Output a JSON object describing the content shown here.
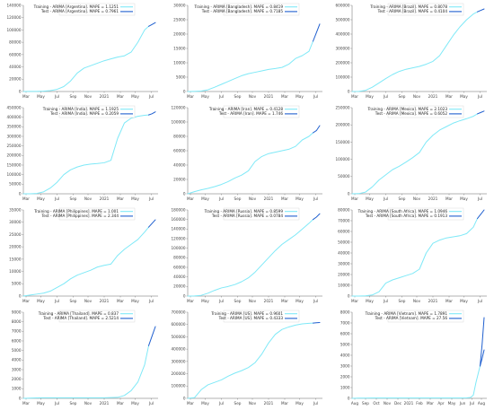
{
  "colors": {
    "training": "#7fe9f7",
    "test": "#1f5fcf"
  },
  "chart_data": [
    {
      "type": "line",
      "title": "",
      "x_tick_labels": [
        "Mar",
        "May",
        "Jul",
        "Sep",
        "Nov",
        "2021",
        "Mar",
        "May",
        "Jul"
      ],
      "x_tick_pos": [
        0.02,
        0.13,
        0.25,
        0.37,
        0.48,
        0.6,
        0.72,
        0.83,
        0.95
      ],
      "ylim": [
        0,
        140000
      ],
      "y_ticks": [
        0,
        20000,
        40000,
        60000,
        80000,
        100000,
        120000,
        140000
      ],
      "legend": [
        "Training - ARIMA [Argentina]. MAPE = 1.1251",
        "Test - ARIMA [Argentina]. MAPE = 0.7961"
      ],
      "train_x": [
        0,
        0.05,
        0.1,
        0.15,
        0.2,
        0.25,
        0.3,
        0.35,
        0.4,
        0.45,
        0.5,
        0.55,
        0.6,
        0.65,
        0.7,
        0.75,
        0.8,
        0.85,
        0.9,
        0.93
      ],
      "train_y": [
        0,
        100,
        200,
        500,
        1500,
        3500,
        8000,
        17000,
        30000,
        38000,
        42000,
        46000,
        50000,
        53000,
        56000,
        58000,
        64000,
        80000,
        100000,
        106000
      ],
      "test_x": [
        0.93,
        0.955,
        0.98
      ],
      "test_y": [
        106000,
        109000,
        112000
      ]
    },
    {
      "type": "line",
      "title": "",
      "x_tick_labels": [
        "Mar",
        "May",
        "Jul",
        "Sep",
        "Nov",
        "2021",
        "Mar",
        "May",
        "Jul"
      ],
      "x_tick_pos": [
        0.02,
        0.13,
        0.25,
        0.37,
        0.48,
        0.6,
        0.72,
        0.83,
        0.95
      ],
      "ylim": [
        0,
        30000
      ],
      "y_ticks": [
        0,
        5000,
        10000,
        15000,
        20000,
        25000,
        30000
      ],
      "legend": [
        "Training - ARIMA [Bangladesh]. MAPE = 0.8419",
        "Test - ARIMA [Bangladesh]. MAPE = 0.7185"
      ],
      "train_x": [
        0,
        0.05,
        0.1,
        0.15,
        0.2,
        0.25,
        0.3,
        0.35,
        0.4,
        0.45,
        0.5,
        0.55,
        0.6,
        0.65,
        0.7,
        0.75,
        0.8,
        0.85,
        0.9,
        0.93
      ],
      "train_y": [
        0,
        50,
        150,
        600,
        1500,
        2500,
        3500,
        4500,
        5500,
        6200,
        6700,
        7200,
        7700,
        8000,
        8400,
        9500,
        11500,
        12500,
        14000,
        17500
      ],
      "test_x": [
        0.93,
        0.955,
        0.98
      ],
      "test_y": [
        17500,
        20500,
        23500
      ]
    },
    {
      "type": "line",
      "title": "",
      "x_tick_labels": [
        "Mar",
        "May",
        "Jul",
        "Sep",
        "Nov",
        "2021",
        "Mar",
        "May",
        "Jul"
      ],
      "x_tick_pos": [
        0.02,
        0.13,
        0.25,
        0.37,
        0.48,
        0.6,
        0.72,
        0.83,
        0.95
      ],
      "ylim": [
        0,
        600000
      ],
      "y_ticks": [
        0,
        100000,
        200000,
        300000,
        400000,
        500000,
        600000
      ],
      "legend": [
        "Training - ARIMA [Brazil]. MAPE = 0.8078",
        "Test - ARIMA [Brazil]. MAPE = 0.4104"
      ],
      "train_x": [
        0,
        0.05,
        0.1,
        0.15,
        0.2,
        0.25,
        0.3,
        0.35,
        0.4,
        0.45,
        0.5,
        0.55,
        0.6,
        0.65,
        0.7,
        0.75,
        0.8,
        0.85,
        0.9,
        0.93
      ],
      "train_y": [
        0,
        1000,
        8000,
        30000,
        60000,
        90000,
        118000,
        140000,
        155000,
        165000,
        175000,
        190000,
        210000,
        250000,
        320000,
        390000,
        450000,
        500000,
        540000,
        555000
      ],
      "test_x": [
        0.93,
        0.955,
        0.98
      ],
      "test_y": [
        555000,
        565000,
        575000
      ]
    },
    {
      "type": "line",
      "title": "",
      "x_tick_labels": [
        "Mar",
        "May",
        "Jul",
        "Sep",
        "Nov",
        "2021",
        "Mar",
        "May",
        "Jul"
      ],
      "x_tick_pos": [
        0.02,
        0.13,
        0.25,
        0.37,
        0.48,
        0.6,
        0.72,
        0.83,
        0.95
      ],
      "ylim": [
        0,
        450000
      ],
      "y_ticks": [
        0,
        50000,
        100000,
        150000,
        200000,
        250000,
        300000,
        350000,
        400000,
        450000
      ],
      "legend": [
        "Training - ARIMA [India]. MAPE = 1.1925",
        "Test - ARIMA [India]. MAPE = 0.2059"
      ],
      "train_x": [
        0,
        0.05,
        0.1,
        0.15,
        0.2,
        0.25,
        0.3,
        0.35,
        0.4,
        0.45,
        0.5,
        0.55,
        0.6,
        0.65,
        0.7,
        0.75,
        0.8,
        0.85,
        0.9,
        0.93
      ],
      "train_y": [
        0,
        100,
        2000,
        10000,
        30000,
        60000,
        100000,
        125000,
        140000,
        150000,
        155000,
        158000,
        162000,
        175000,
        290000,
        370000,
        395000,
        405000,
        410000,
        412000
      ],
      "test_x": [
        0.93,
        0.955,
        0.98
      ],
      "test_y": [
        412000,
        418000,
        428000
      ]
    },
    {
      "type": "line",
      "title": "",
      "x_tick_labels": [
        "Mar",
        "May",
        "Jul",
        "Sep",
        "Nov",
        "2021",
        "Mar",
        "May",
        "Jul"
      ],
      "x_tick_pos": [
        0.02,
        0.13,
        0.25,
        0.37,
        0.48,
        0.6,
        0.72,
        0.83,
        0.95
      ],
      "ylim": [
        0,
        120000
      ],
      "y_ticks": [
        0,
        20000,
        40000,
        60000,
        80000,
        100000,
        120000
      ],
      "legend": [
        "Training - ARIMA [Iran]. MAPE = 0.4128",
        "Test - ARIMA [Iran]. MAPE = 1.746"
      ],
      "train_x": [
        0,
        0.05,
        0.1,
        0.15,
        0.2,
        0.25,
        0.3,
        0.35,
        0.4,
        0.45,
        0.5,
        0.55,
        0.6,
        0.65,
        0.7,
        0.75,
        0.8,
        0.85,
        0.9,
        0.93
      ],
      "train_y": [
        0,
        3000,
        5500,
        7500,
        10000,
        13000,
        17000,
        22000,
        26000,
        32000,
        45000,
        52000,
        56000,
        58000,
        60000,
        62000,
        66000,
        75000,
        80000,
        85000
      ],
      "test_x": [
        0.93,
        0.955,
        0.98
      ],
      "test_y": [
        85000,
        88000,
        95000
      ]
    },
    {
      "type": "line",
      "title": "",
      "x_tick_labels": [
        "Mar",
        "May",
        "Jul",
        "Sep",
        "Nov",
        "2021",
        "Mar",
        "May",
        "Jul"
      ],
      "x_tick_pos": [
        0.02,
        0.13,
        0.25,
        0.37,
        0.48,
        0.6,
        0.72,
        0.83,
        0.95
      ],
      "ylim": [
        0,
        250000
      ],
      "y_ticks": [
        0,
        50000,
        100000,
        150000,
        200000,
        250000
      ],
      "legend": [
        "Training - ARIMA [Mexico]. MAPE = 2.1023",
        "Test - ARIMA [Mexico]. MAPE = 0.6052"
      ],
      "train_x": [
        0,
        0.05,
        0.1,
        0.15,
        0.2,
        0.25,
        0.3,
        0.35,
        0.4,
        0.45,
        0.5,
        0.55,
        0.6,
        0.65,
        0.7,
        0.75,
        0.8,
        0.85,
        0.9,
        0.93
      ],
      "train_y": [
        0,
        500,
        5000,
        20000,
        40000,
        55000,
        70000,
        80000,
        92000,
        105000,
        120000,
        150000,
        170000,
        185000,
        195000,
        205000,
        212000,
        218000,
        225000,
        232000
      ],
      "test_x": [
        0.93,
        0.955,
        0.98
      ],
      "test_y": [
        232000,
        236000,
        240000
      ]
    },
    {
      "type": "line",
      "title": "",
      "x_tick_labels": [
        "Mar",
        "May",
        "Jul",
        "Sep",
        "Nov",
        "2021",
        "Mar",
        "May",
        "Jul"
      ],
      "x_tick_pos": [
        0.02,
        0.13,
        0.25,
        0.37,
        0.48,
        0.6,
        0.72,
        0.83,
        0.95
      ],
      "ylim": [
        0,
        35000
      ],
      "y_ticks": [
        0,
        5000,
        10000,
        15000,
        20000,
        25000,
        30000,
        35000
      ],
      "legend": [
        "Training - ARIMA [Philippines]. MAPE = 1.001",
        "Test - ARIMA [Philippines]. MAPE = 2.344"
      ],
      "train_x": [
        0,
        0.05,
        0.1,
        0.15,
        0.2,
        0.25,
        0.3,
        0.35,
        0.4,
        0.45,
        0.5,
        0.55,
        0.6,
        0.65,
        0.7,
        0.75,
        0.8,
        0.85,
        0.9,
        0.93
      ],
      "train_y": [
        0,
        400,
        800,
        1200,
        2000,
        3500,
        5000,
        7000,
        8500,
        9500,
        10500,
        11800,
        12500,
        13000,
        16500,
        19000,
        21000,
        23000,
        26000,
        28000
      ],
      "test_x": [
        0.93,
        0.955,
        0.98
      ],
      "test_y": [
        28000,
        29500,
        31000
      ]
    },
    {
      "type": "line",
      "title": "",
      "x_tick_labels": [
        "Mar",
        "May",
        "Jul",
        "Sep",
        "Nov",
        "2021",
        "Mar",
        "May",
        "Jul"
      ],
      "x_tick_pos": [
        0.02,
        0.13,
        0.25,
        0.37,
        0.48,
        0.6,
        0.72,
        0.83,
        0.95
      ],
      "ylim": [
        0,
        180000
      ],
      "y_ticks": [
        0,
        20000,
        40000,
        60000,
        80000,
        100000,
        120000,
        140000,
        160000,
        180000
      ],
      "legend": [
        "Training - ARIMA [Russia]. MAPE = 0.8599",
        "Test - ARIMA [Russia]. MAPE = 0.0784"
      ],
      "train_x": [
        0,
        0.05,
        0.1,
        0.15,
        0.2,
        0.25,
        0.3,
        0.35,
        0.4,
        0.45,
        0.5,
        0.55,
        0.6,
        0.65,
        0.7,
        0.75,
        0.8,
        0.85,
        0.9,
        0.93
      ],
      "train_y": [
        0,
        200,
        1500,
        6000,
        12000,
        17000,
        20000,
        24000,
        30000,
        38000,
        50000,
        65000,
        80000,
        95000,
        108000,
        118000,
        128000,
        140000,
        152000,
        160000
      ],
      "test_x": [
        0.93,
        0.955,
        0.98
      ],
      "test_y": [
        160000,
        165000,
        172000
      ]
    },
    {
      "type": "line",
      "title": "",
      "x_tick_labels": [
        "Mar",
        "May",
        "Jul",
        "Sep",
        "Nov",
        "2021",
        "Mar",
        "May",
        "Jul"
      ],
      "x_tick_pos": [
        0.02,
        0.13,
        0.25,
        0.37,
        0.48,
        0.6,
        0.72,
        0.83,
        0.95
      ],
      "ylim": [
        0,
        80000
      ],
      "y_ticks": [
        0,
        10000,
        20000,
        30000,
        40000,
        50000,
        60000,
        70000,
        80000
      ],
      "legend": [
        "Training - ARIMA [South Africa]. MAPE = 1.0946",
        "Test - ARIMA [South Africa]. MAPE = 0.1913"
      ],
      "train_x": [
        0,
        0.05,
        0.1,
        0.15,
        0.2,
        0.25,
        0.3,
        0.35,
        0.4,
        0.45,
        0.5,
        0.55,
        0.6,
        0.65,
        0.7,
        0.75,
        0.8,
        0.85,
        0.9,
        0.93
      ],
      "train_y": [
        0,
        50,
        200,
        1000,
        4000,
        12000,
        15000,
        17000,
        19000,
        21000,
        25000,
        40000,
        49000,
        52000,
        54000,
        55000,
        56000,
        58000,
        64000,
        72000
      ],
      "test_x": [
        0.93,
        0.955,
        0.98
      ],
      "test_y": [
        72000,
        76000,
        80000
      ]
    },
    {
      "type": "line",
      "title": "",
      "x_tick_labels": [
        "Mar",
        "May",
        "Jul",
        "Sep",
        "Nov",
        "2021",
        "Mar",
        "May",
        "Jul"
      ],
      "x_tick_pos": [
        0.02,
        0.13,
        0.25,
        0.37,
        0.48,
        0.6,
        0.72,
        0.83,
        0.95
      ],
      "ylim": [
        0,
        9000
      ],
      "y_ticks": [
        0,
        1000,
        2000,
        3000,
        4000,
        5000,
        6000,
        7000,
        8000,
        9000
      ],
      "legend": [
        "Training - ARIMA [Thailand]. MAPE = 0.837",
        "Test - ARIMA [Thailand]. MAPE = 2.5214"
      ],
      "train_x": [
        0,
        0.05,
        0.1,
        0.15,
        0.2,
        0.25,
        0.3,
        0.35,
        0.4,
        0.45,
        0.5,
        0.55,
        0.6,
        0.65,
        0.7,
        0.75,
        0.8,
        0.85,
        0.9,
        0.93
      ],
      "train_y": [
        0,
        20,
        50,
        58,
        58,
        58,
        58,
        58,
        58,
        58,
        60,
        60,
        60,
        80,
        100,
        300,
        800,
        1700,
        3500,
        5500
      ],
      "test_x": [
        0.93,
        0.955,
        0.98
      ],
      "test_y": [
        5500,
        6500,
        7500
      ]
    },
    {
      "type": "line",
      "title": "",
      "x_tick_labels": [
        "Mar",
        "May",
        "Jul",
        "Sep",
        "Nov",
        "2021",
        "Mar",
        "May",
        "Jul"
      ],
      "x_tick_pos": [
        0.02,
        0.13,
        0.25,
        0.37,
        0.48,
        0.6,
        0.72,
        0.83,
        0.95
      ],
      "ylim": [
        0,
        700000
      ],
      "y_ticks": [
        0,
        100000,
        200000,
        300000,
        400000,
        500000,
        600000,
        700000
      ],
      "legend": [
        "Training - ARIMA [US]. MAPE = 0.9601",
        "Test - ARIMA [US]. MAPE = 0.4333"
      ],
      "train_x": [
        0,
        0.05,
        0.1,
        0.15,
        0.2,
        0.25,
        0.3,
        0.35,
        0.4,
        0.45,
        0.5,
        0.55,
        0.6,
        0.65,
        0.7,
        0.75,
        0.8,
        0.85,
        0.9,
        0.93
      ],
      "train_y": [
        0,
        5000,
        70000,
        110000,
        130000,
        150000,
        180000,
        205000,
        225000,
        250000,
        290000,
        360000,
        450000,
        520000,
        560000,
        580000,
        595000,
        605000,
        610000,
        612000
      ],
      "test_x": [
        0.93,
        0.955,
        0.98
      ],
      "test_y": [
        612000,
        614000,
        616000
      ]
    },
    {
      "type": "line",
      "title": "",
      "x_tick_labels": [
        "Aug",
        "Sep",
        "Oct",
        "Nov",
        "Dec",
        "2021",
        "Feb",
        "Mar",
        "Apr",
        "May",
        "Jun",
        "Jul",
        "Aug"
      ],
      "x_tick_pos": [
        0.02,
        0.1,
        0.18,
        0.26,
        0.34,
        0.42,
        0.5,
        0.58,
        0.66,
        0.74,
        0.82,
        0.89,
        0.96
      ],
      "ylim": [
        0,
        8000
      ],
      "y_ticks": [
        0,
        1000,
        2000,
        3000,
        4000,
        5000,
        6000,
        7000,
        8000
      ],
      "legend": [
        "Training - ARIMA [Vietnam]. MAPE = 1.7891",
        "Test - ARIMA [Vietnam]. MAPE = 27.56"
      ],
      "train_x": [
        0,
        0.05,
        0.1,
        0.15,
        0.2,
        0.25,
        0.3,
        0.35,
        0.4,
        0.45,
        0.5,
        0.55,
        0.6,
        0.65,
        0.7,
        0.75,
        0.8,
        0.85,
        0.88,
        0.9,
        0.92,
        0.95
      ],
      "train_y": [
        0,
        20,
        25,
        30,
        35,
        35,
        35,
        35,
        35,
        35,
        35,
        35,
        35,
        35,
        35,
        35,
        35,
        40,
        80,
        300,
        1500,
        3000
      ],
      "test_x": [
        0.95,
        0.965,
        0.98
      ],
      "test_y": [
        3000,
        5000,
        7500
      ],
      "test2_x": [
        0.95,
        0.965,
        0.98
      ],
      "test2_y": [
        3000,
        3700,
        4500
      ]
    }
  ]
}
